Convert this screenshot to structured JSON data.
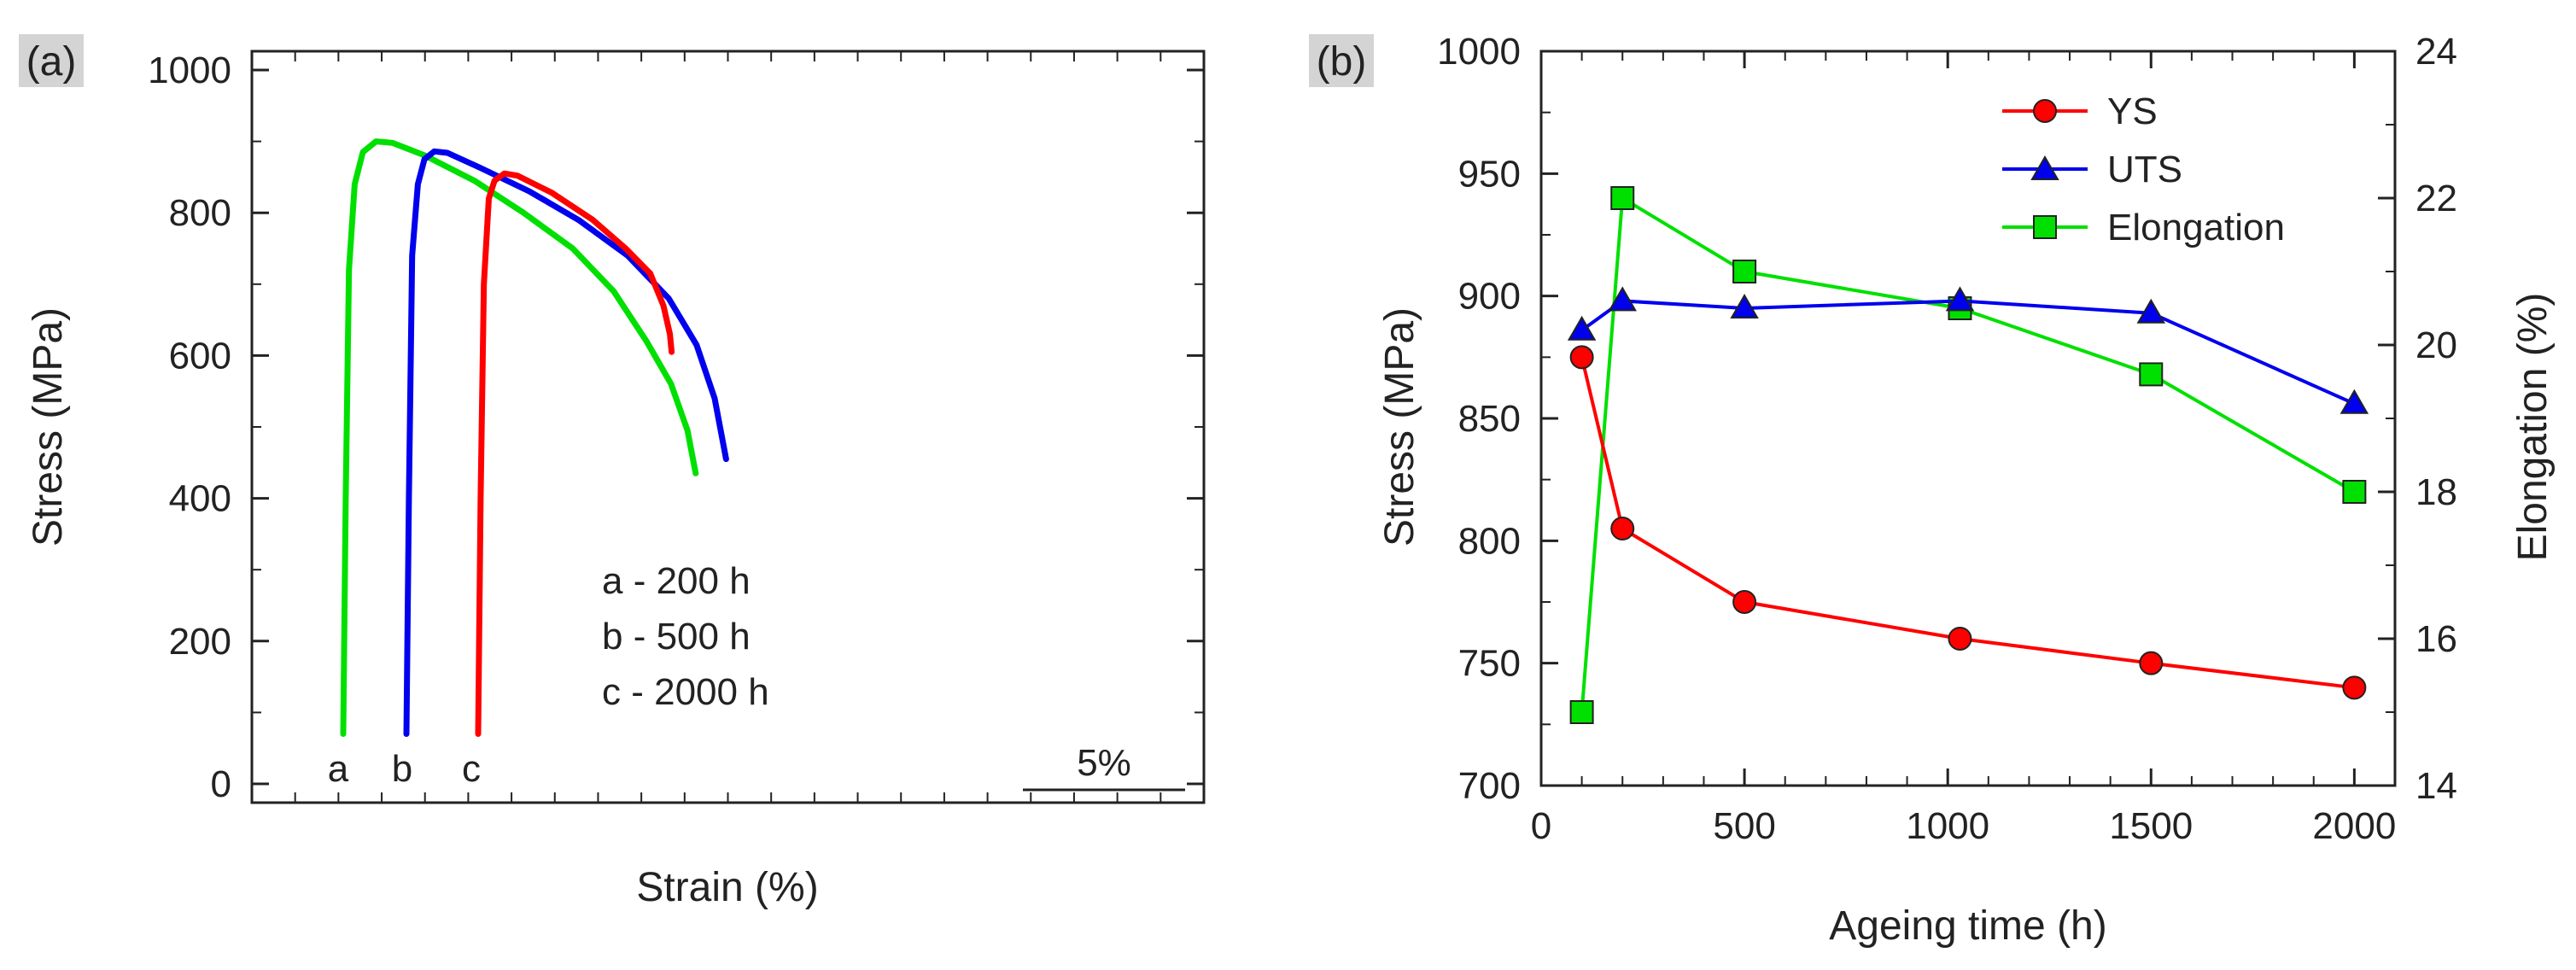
{
  "panels": [
    {
      "label": "(a)"
    },
    {
      "label": "(b)"
    }
  ],
  "chart_data": [
    {
      "type": "line",
      "panel": "(a)",
      "title": "",
      "xlabel": "Strain (%)",
      "ylabel": "Stress (MPa)",
      "ylim": [
        0,
        1000
      ],
      "yticks": [
        0,
        200,
        400,
        600,
        800,
        1000
      ],
      "xticks_visible": false,
      "scale_bar_label": "5%",
      "curve_letters": [
        "a",
        "b",
        "c"
      ],
      "annotations": [
        "a - 200 h",
        "b - 500 h",
        "c - 2000 h"
      ],
      "series": [
        {
          "color": "#00e000",
          "x": [
            0.0,
            0.15,
            0.35,
            0.7,
            1.2,
            2.0,
            3.0,
            5.0,
            8.0,
            11.0,
            14.0,
            16.5,
            18.5,
            20.0,
            21.0,
            21.5
          ],
          "y": [
            70,
            400,
            720,
            840,
            885,
            900,
            898,
            880,
            845,
            800,
            750,
            690,
            620,
            560,
            495,
            435
          ]
        },
        {
          "color": "#0000ee",
          "x": [
            0.0,
            0.15,
            0.35,
            0.7,
            1.1,
            1.7,
            2.5,
            4.5,
            7.5,
            10.5,
            13.5,
            16.0,
            17.7,
            18.8,
            19.5
          ],
          "y": [
            70,
            400,
            740,
            840,
            875,
            886,
            884,
            863,
            830,
            790,
            740,
            680,
            615,
            540,
            455
          ]
        },
        {
          "color": "#ff0000",
          "x": [
            0.0,
            0.15,
            0.35,
            0.65,
            1.0,
            1.6,
            2.4,
            4.5,
            7.0,
            9.0,
            10.5,
            11.3,
            11.7,
            11.8
          ],
          "y": [
            70,
            400,
            700,
            820,
            845,
            855,
            852,
            828,
            790,
            750,
            715,
            670,
            630,
            605
          ]
        }
      ]
    },
    {
      "type": "line",
      "panel": "(b)",
      "title": "",
      "xlabel": "Ageing time (h)",
      "ylabel": "Stress (MPa)",
      "y2label": "Elongation (%)",
      "xlim": [
        0,
        2100
      ],
      "xticks": [
        0,
        500,
        1000,
        1500,
        2000
      ],
      "ylim": [
        700,
        1000
      ],
      "yticks": [
        700,
        750,
        800,
        850,
        900,
        950,
        1000
      ],
      "y2lim": [
        14,
        24
      ],
      "y2ticks": [
        14,
        16,
        18,
        20,
        22,
        24
      ],
      "legend_position": "top-right",
      "series": [
        {
          "name": "YS",
          "axis": "left",
          "marker": "circle",
          "color": "#ff0000",
          "x": [
            100,
            200,
            500,
            1030,
            1500,
            2000
          ],
          "y": [
            875,
            805,
            775,
            760,
            750,
            740
          ]
        },
        {
          "name": "UTS",
          "axis": "left",
          "marker": "triangle",
          "color": "#0000ee",
          "x": [
            100,
            200,
            500,
            1030,
            1500,
            2000
          ],
          "y": [
            886,
            898,
            895,
            898,
            893,
            856
          ]
        },
        {
          "name": "Elongation",
          "axis": "right",
          "marker": "square",
          "color": "#00e000",
          "x": [
            100,
            200,
            500,
            1030,
            1500,
            2000
          ],
          "y": [
            15.0,
            22.0,
            21.0,
            20.5,
            19.6,
            18.0
          ]
        }
      ]
    }
  ]
}
